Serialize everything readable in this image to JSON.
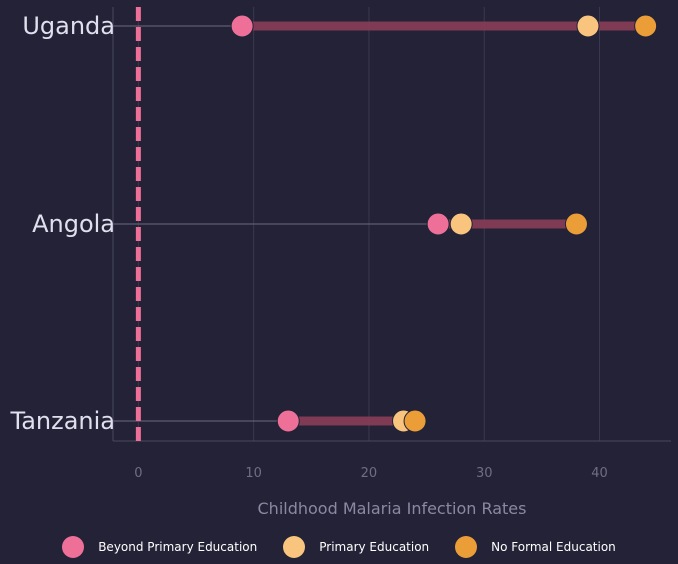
{
  "chart_data": {
    "type": "dumbbell",
    "xlabel": "Childhood Malaria Infection Rates",
    "xlim": [
      -2.2,
      46.2
    ],
    "xticks": [
      0,
      10,
      20,
      30,
      40
    ],
    "categories": [
      "Uganda",
      "Angola",
      "Tanzania"
    ],
    "series": [
      {
        "name": "Beyond Primary Education",
        "color": "#ee7099",
        "values": [
          9,
          26,
          13
        ]
      },
      {
        "name": "Primary Education",
        "color": "#f8c47e",
        "values": [
          39,
          28,
          23
        ]
      },
      {
        "name": "No Formal Education",
        "color": "#eb9d38",
        "values": [
          44,
          38,
          24
        ]
      }
    ],
    "reference_line": {
      "x": 0,
      "style": "dashed",
      "color": "#ee7099"
    },
    "range_bar_color": "#8a3d58",
    "grid": true,
    "legend_position": "bottom"
  }
}
